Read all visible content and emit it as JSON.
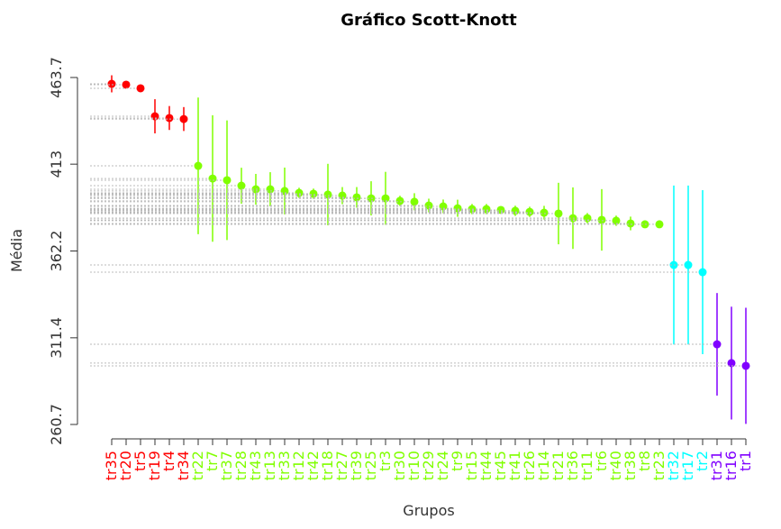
{
  "chart_data": {
    "type": "errorpoint",
    "title": "Gráfico Scott-Knott",
    "x_label": "Grupos",
    "y_label": "Média",
    "categories": [
      "tr35",
      "tr20",
      "tr5",
      "tr19",
      "tr4",
      "tr34",
      "tr22",
      "tr7",
      "tr37",
      "tr28",
      "tr43",
      "tr13",
      "tr33",
      "tr12",
      "tr42",
      "tr18",
      "tr27",
      "tr39",
      "tr25",
      "tr3",
      "tr30",
      "tr10",
      "tr29",
      "tr24",
      "tr9",
      "tr15",
      "tr44",
      "tr45",
      "tr41",
      "tr26",
      "tr14",
      "tr21",
      "tr36",
      "tr11",
      "tr6",
      "tr40",
      "tr38",
      "tr8",
      "tr23",
      "tr32",
      "tr17",
      "tr2",
      "tr31",
      "tr16",
      "tr1"
    ],
    "values": [
      460.0,
      459.5,
      457.4,
      441.0,
      440.0,
      439.4,
      412.0,
      404.6,
      403.6,
      400.4,
      398.3,
      398.3,
      397.3,
      396.2,
      395.7,
      395.2,
      394.6,
      393.6,
      393.0,
      393.0,
      391.5,
      391.0,
      388.8,
      388.3,
      387.2,
      386.7,
      386.7,
      386.2,
      385.7,
      385.1,
      384.6,
      384.1,
      381.4,
      381.4,
      380.4,
      379.9,
      378.3,
      377.8,
      377.8,
      354.0,
      354.0,
      349.8,
      307.6,
      296.6,
      295.0
    ],
    "errors": [
      5,
      2,
      2,
      10,
      7,
      7,
      40,
      37,
      35,
      10.5,
      9,
      10,
      13.7,
      3,
      3,
      18,
      5,
      6,
      10,
      15.5,
      3,
      5,
      4,
      4,
      5,
      3,
      3,
      2,
      3,
      3,
      4,
      18,
      18,
      3,
      18,
      3,
      4,
      2,
      2,
      46.5,
      46.5,
      48,
      30,
      33,
      34
    ],
    "colors": [
      "#ff0000",
      "#ff0000",
      "#ff0000",
      "#ff0000",
      "#ff0000",
      "#ff0000",
      "#80ff00",
      "#80ff00",
      "#80ff00",
      "#80ff00",
      "#80ff00",
      "#80ff00",
      "#80ff00",
      "#80ff00",
      "#80ff00",
      "#80ff00",
      "#80ff00",
      "#80ff00",
      "#80ff00",
      "#80ff00",
      "#80ff00",
      "#80ff00",
      "#80ff00",
      "#80ff00",
      "#80ff00",
      "#80ff00",
      "#80ff00",
      "#80ff00",
      "#80ff00",
      "#80ff00",
      "#80ff00",
      "#80ff00",
      "#80ff00",
      "#80ff00",
      "#80ff00",
      "#80ff00",
      "#80ff00",
      "#80ff00",
      "#80ff00",
      "#00ffff",
      "#00ffff",
      "#00ffff",
      "#8000ff",
      "#8000ff",
      "#8000ff"
    ],
    "ylim": [
      260.7,
      463.7
    ],
    "yticks": [
      260.7,
      311.4,
      362.2,
      413.0,
      463.7
    ],
    "guides": true
  }
}
